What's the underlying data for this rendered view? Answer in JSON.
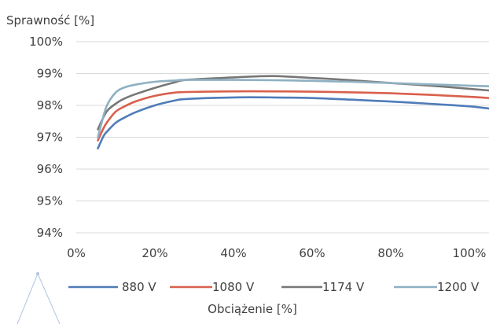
{
  "chart_data": {
    "type": "line",
    "ylabel": "Sprawność [%]",
    "xlabel": "Obciążenie [%]",
    "xlim": [
      0,
      105
    ],
    "ylim": [
      94,
      100
    ],
    "x_ticks": [
      0,
      20,
      40,
      60,
      80,
      100
    ],
    "y_ticks": [
      94,
      95,
      96,
      97,
      98,
      99,
      100
    ],
    "x_tick_labels": [
      "0%",
      "20%",
      "40%",
      "60%",
      "80%",
      "100%"
    ],
    "y_tick_labels": [
      "94%",
      "95%",
      "96%",
      "97%",
      "98%",
      "99%",
      "100%"
    ],
    "grid": "horizontal",
    "legend_position": "bottom",
    "series": [
      {
        "name": "880 V",
        "color": "#4f7cb8",
        "x": [
          5.5,
          7,
          8,
          10,
          12,
          15,
          20,
          25,
          28,
          40,
          50,
          60,
          70,
          80,
          90,
          100,
          105
        ],
        "y": [
          96.65,
          97.05,
          97.2,
          97.45,
          97.6,
          97.78,
          98.0,
          98.15,
          98.2,
          98.25,
          98.25,
          98.23,
          98.18,
          98.12,
          98.05,
          97.97,
          97.9
        ]
      },
      {
        "name": "1080 V",
        "color": "#d9604c",
        "x": [
          5.5,
          7,
          8,
          10,
          12,
          15,
          20,
          25,
          28,
          40,
          50,
          60,
          70,
          80,
          90,
          100,
          105
        ],
        "y": [
          96.9,
          97.3,
          97.5,
          97.8,
          97.95,
          98.12,
          98.3,
          98.4,
          98.42,
          98.44,
          98.44,
          98.43,
          98.41,
          98.38,
          98.33,
          98.27,
          98.23
        ]
      },
      {
        "name": "1174 V",
        "color": "#777777",
        "x": [
          5.5,
          7,
          8,
          10,
          12,
          15,
          20,
          25,
          28,
          40,
          50,
          60,
          70,
          80,
          90,
          100,
          105
        ],
        "y": [
          97.25,
          97.65,
          97.85,
          98.05,
          98.2,
          98.35,
          98.55,
          98.72,
          98.8,
          98.88,
          98.92,
          98.86,
          98.79,
          98.7,
          98.62,
          98.52,
          98.47
        ]
      },
      {
        "name": "1200 V",
        "color": "#8fb0c2",
        "x": [
          5.5,
          7,
          8,
          10,
          12,
          15,
          20,
          25,
          28,
          40,
          50,
          60,
          70,
          80,
          90,
          100,
          105
        ],
        "y": [
          97.0,
          97.7,
          98.05,
          98.4,
          98.55,
          98.65,
          98.74,
          98.78,
          98.8,
          98.8,
          98.79,
          98.77,
          98.74,
          98.7,
          98.66,
          98.62,
          98.6
        ]
      }
    ]
  }
}
